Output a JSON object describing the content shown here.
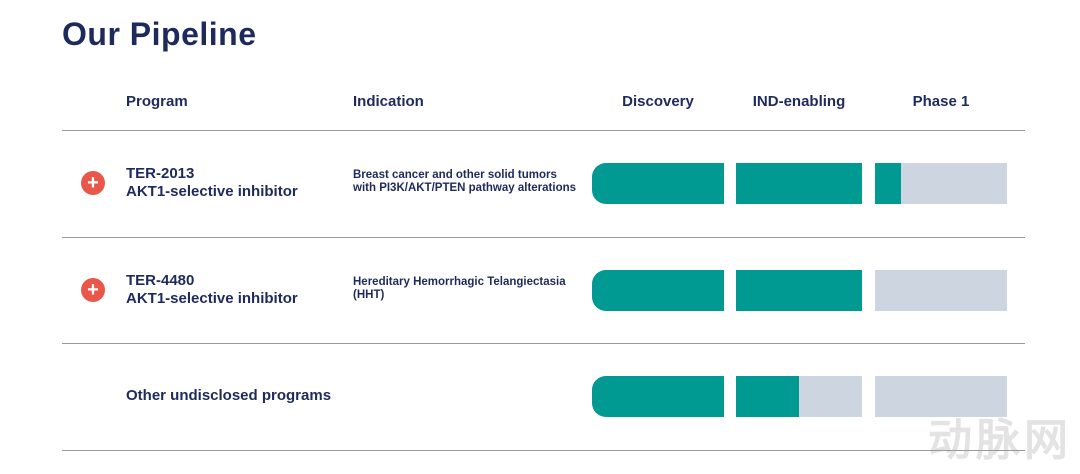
{
  "title": "Our Pipeline",
  "columns": {
    "program": "Program",
    "indication": "Indication",
    "stages": [
      "Discovery",
      "IND-enabling",
      "Phase 1"
    ]
  },
  "rows": [
    {
      "program": "TER-2013",
      "subtitle": "AKT1-selective inhibitor",
      "indication": "Breast cancer and other solid tumors with PI3K/AKT/PTEN pathway alterations",
      "progress": 2.2
    },
    {
      "program": "TER-4480",
      "subtitle": "AKT1-selective inhibitor",
      "indication": "Hereditary Hemorrhagic Telangiectasia (HHT)",
      "progress": 2.0
    },
    {
      "program": "Other undisclosed programs",
      "progress": 1.5
    }
  ],
  "colors": {
    "filled": "#009a93",
    "empty": "#cdd6e0",
    "icon": "#e8574a"
  },
  "watermark": "动脉网"
}
